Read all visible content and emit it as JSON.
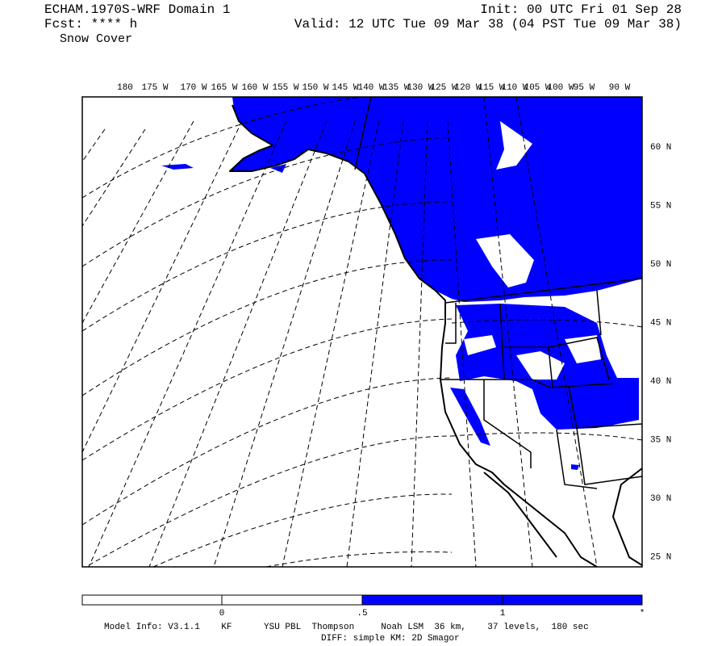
{
  "header": {
    "model": "ECHAM.1970S-WRF Domain 1",
    "forecast": "Fcst: **** h",
    "field": "Snow Cover",
    "init": "Init: 00 UTC Fri 01 Sep 28",
    "valid": "Valid: 12 UTC Tue 09 Mar 38 (04 PST Tue 09 Mar 38)"
  },
  "map": {
    "lon_labels": [
      "180",
      "175 W",
      "170 W",
      "165 W",
      "160 W",
      "155 W",
      "150 W",
      "145 W",
      "140 W",
      "135 W",
      "130 W",
      "125 W",
      "120 W",
      "115 W",
      "110 W",
      "105 W",
      "100 W",
      "95 W",
      "90 W"
    ],
    "lat_labels": [
      "60 N",
      "55 N",
      "50 N",
      "45 N",
      "40 N",
      "35 N",
      "30 N",
      "25 N"
    ]
  },
  "colorbar": {
    "labels": [
      "0",
      ".5",
      "1",
      "*"
    ]
  },
  "footer": {
    "model_info": "Model Info: V3.1.1    KF      YSU PBL  Thompson     Noah LSM  36 km,    37 levels,  180 sec",
    "diff": "DIFF: simple KM: 2D Smagor"
  }
}
